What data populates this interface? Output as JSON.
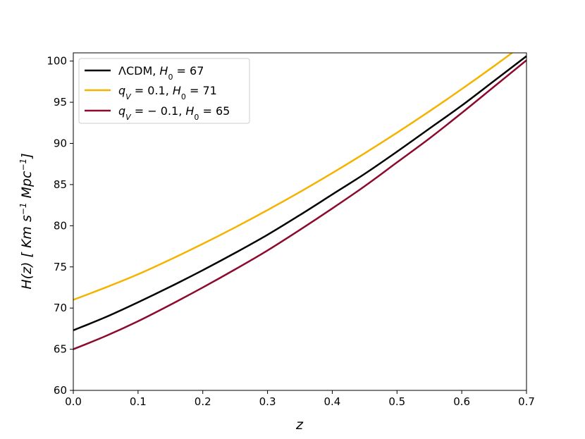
{
  "chart_data": {
    "type": "line",
    "title": "",
    "xlabel": "z",
    "ylabel": "H(z) [ Km s⁻¹ Mpc⁻¹]",
    "xlim": [
      0.0,
      0.7
    ],
    "ylim": [
      60,
      101
    ],
    "xticks": [
      "0.0",
      "0.1",
      "0.2",
      "0.3",
      "0.4",
      "0.5",
      "0.6",
      "0.7"
    ],
    "yticks": [
      "60",
      "65",
      "70",
      "75",
      "80",
      "85",
      "90",
      "95",
      "100"
    ],
    "grid": false,
    "legend_position": "top-left",
    "x": [
      0.0,
      0.05,
      0.1,
      0.15,
      0.2,
      0.25,
      0.3,
      0.35,
      0.4,
      0.45,
      0.5,
      0.55,
      0.6,
      0.65,
      0.7
    ],
    "series": [
      {
        "name": "ΛCDM, H₀ = 67",
        "color": "#000000",
        "values": [
          67.3,
          68.9,
          70.7,
          72.6,
          74.6,
          76.7,
          78.9,
          81.3,
          83.8,
          86.3,
          89.0,
          91.8,
          94.6,
          97.6,
          100.6
        ]
      },
      {
        "name": "qᵥ = 0.1,  H₀ = 71",
        "color": "#f5b300",
        "values": [
          71.0,
          72.5,
          74.1,
          75.9,
          77.8,
          79.8,
          81.9,
          84.1,
          86.4,
          88.8,
          91.3,
          93.9,
          96.6,
          99.4,
          102.3
        ]
      },
      {
        "name": "qᵥ = − 0.1,  H₀ = 65",
        "color": "#8b0a2d",
        "values": [
          65.0,
          66.6,
          68.4,
          70.4,
          72.5,
          74.7,
          77.0,
          79.5,
          82.1,
          84.8,
          87.7,
          90.6,
          93.7,
          96.9,
          100.1
        ]
      }
    ]
  }
}
